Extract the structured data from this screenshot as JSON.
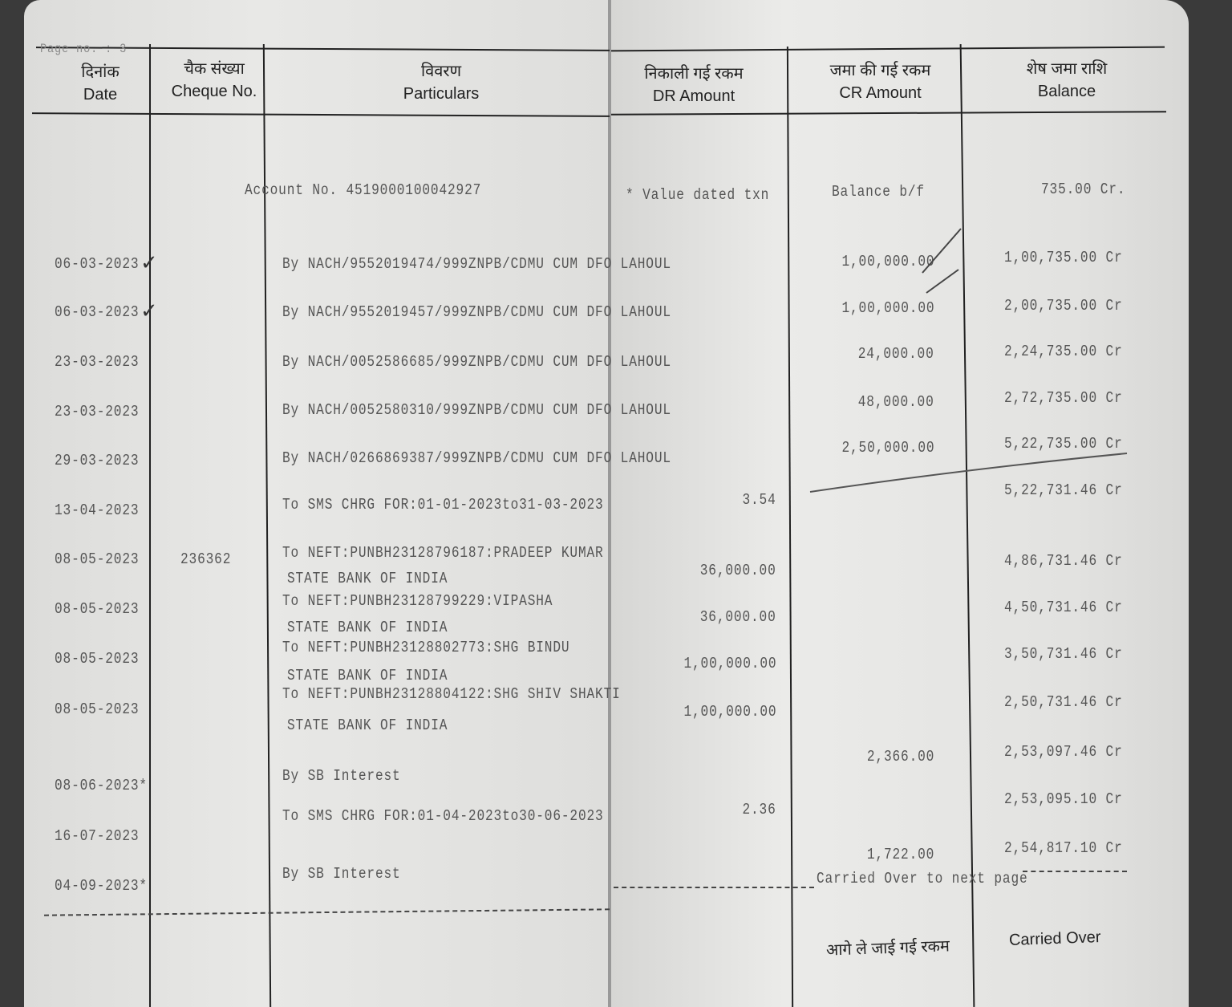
{
  "page_no": "Page no. : 3",
  "headers": {
    "date": {
      "hi": "दिनांक",
      "en": "Date"
    },
    "cheque": {
      "hi": "चैक संख्या",
      "en": "Cheque No."
    },
    "particulars": {
      "hi": "विवरण",
      "en": "Particulars"
    },
    "dr": {
      "hi": "निकाली गई रकम",
      "en": "DR Amount"
    },
    "cr": {
      "hi": "जमा की गई रकम",
      "en": "CR Amount"
    },
    "balance": {
      "hi": "शेष जमा राशि",
      "en": "Balance"
    }
  },
  "account_line": "Account No. 4519000100042927",
  "value_dated_note": "* Value dated txn",
  "balance_bf_label": "Balance b/f",
  "balance_bf": "735.00 Cr.",
  "transactions": [
    {
      "date": "06-03-2023",
      "cheque": "",
      "particulars": [
        "By NACH/9552019474/999ZNPB/CDMU CUM DFO LAHOUL"
      ],
      "dr": "",
      "cr": "1,00,000.00",
      "balance": "1,00,735.00 Cr"
    },
    {
      "date": "06-03-2023",
      "cheque": "",
      "particulars": [
        "By NACH/9552019457/999ZNPB/CDMU CUM DFO LAHOUL"
      ],
      "dr": "",
      "cr": "1,00,000.00",
      "balance": "2,00,735.00 Cr"
    },
    {
      "date": "23-03-2023",
      "cheque": "",
      "particulars": [
        "By NACH/0052586685/999ZNPB/CDMU CUM DFO LAHOUL"
      ],
      "dr": "",
      "cr": "24,000.00",
      "balance": "2,24,735.00 Cr"
    },
    {
      "date": "23-03-2023",
      "cheque": "",
      "particulars": [
        "By NACH/0052580310/999ZNPB/CDMU CUM DFO LAHOUL"
      ],
      "dr": "",
      "cr": "48,000.00",
      "balance": "2,72,735.00 Cr"
    },
    {
      "date": "29-03-2023",
      "cheque": "",
      "particulars": [
        "By NACH/0266869387/999ZNPB/CDMU CUM DFO LAHOUL"
      ],
      "dr": "",
      "cr": "2,50,000.00",
      "balance": "5,22,735.00 Cr"
    },
    {
      "date": "13-04-2023",
      "cheque": "",
      "particulars": [
        "To SMS CHRG FOR:01-01-2023to31-03-2023"
      ],
      "dr": "3.54",
      "cr": "",
      "balance": "5,22,731.46 Cr"
    },
    {
      "date": "08-05-2023",
      "cheque": "236362",
      "particulars": [
        "To NEFT:PUNBH23128796187:PRADEEP KUMAR",
        "STATE BANK OF INDIA"
      ],
      "dr": "36,000.00",
      "cr": "",
      "balance": "4,86,731.46 Cr"
    },
    {
      "date": "08-05-2023",
      "cheque": "",
      "particulars": [
        "To NEFT:PUNBH23128799229:VIPASHA",
        "STATE BANK OF INDIA"
      ],
      "dr": "36,000.00",
      "cr": "",
      "balance": "4,50,731.46 Cr"
    },
    {
      "date": "08-05-2023",
      "cheque": "",
      "particulars": [
        "To NEFT:PUNBH23128802773:SHG BINDU",
        "STATE BANK OF INDIA"
      ],
      "dr": "1,00,000.00",
      "cr": "",
      "balance": "3,50,731.46 Cr"
    },
    {
      "date": "08-05-2023",
      "cheque": "",
      "particulars": [
        "To NEFT:PUNBH23128804122:SHG SHIV SHAKTI",
        "STATE BANK OF INDIA"
      ],
      "dr": "1,00,000.00",
      "cr": "",
      "balance": "2,50,731.46 Cr"
    },
    {
      "date": "08-06-2023*",
      "cheque": "",
      "particulars": [
        "By SB Interest"
      ],
      "dr": "",
      "cr": "2,366.00",
      "balance": "2,53,097.46 Cr"
    },
    {
      "date": "16-07-2023",
      "cheque": "",
      "particulars": [
        "To SMS CHRG FOR:01-04-2023to30-06-2023"
      ],
      "dr": "2.36",
      "cr": "",
      "balance": "2,53,095.10 Cr"
    },
    {
      "date": "04-09-2023*",
      "cheque": "",
      "particulars": [
        "By SB Interest"
      ],
      "dr": "",
      "cr": "1,722.00",
      "balance": "2,54,817.10 Cr"
    }
  ],
  "carried_over_line": "Carried Over to next page",
  "footer": {
    "hi": "आगे ले जाई गई रकम",
    "en": "Carried Over"
  }
}
